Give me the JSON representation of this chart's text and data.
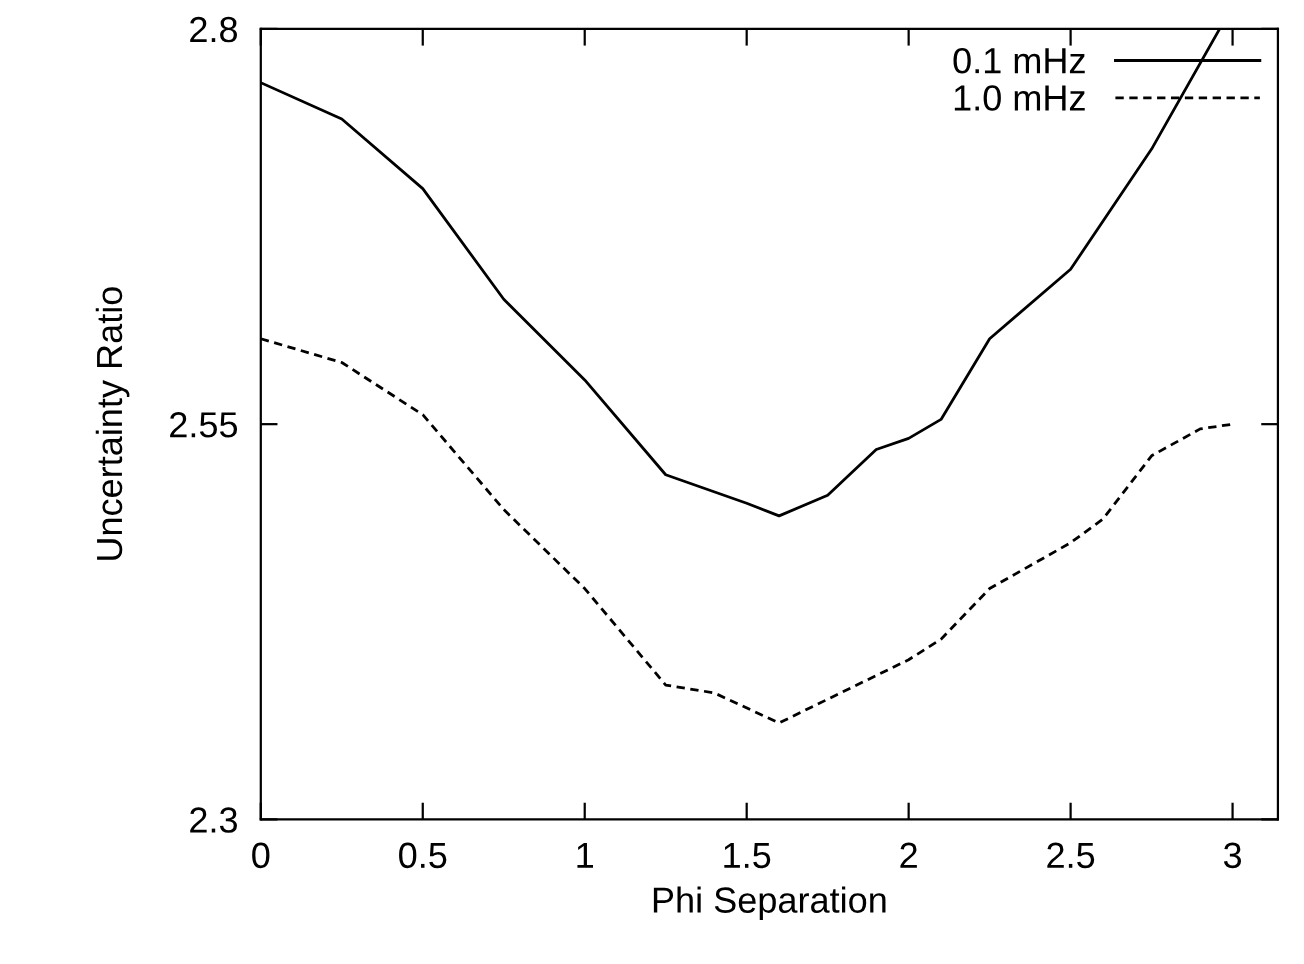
{
  "chart_data": {
    "type": "line",
    "xlabel": "Phi Separation",
    "ylabel": "Uncertainty Ratio",
    "xlim": [
      0,
      3.14
    ],
    "ylim": [
      2.3,
      2.8
    ],
    "xticks": [
      0,
      0.5,
      1,
      1.5,
      2,
      2.5,
      3
    ],
    "yticks": [
      2.3,
      2.55,
      2.8
    ],
    "legend": "top right",
    "grid": false,
    "marker": "none",
    "series": [
      {
        "name": "0.1 mHz",
        "color": "#000000",
        "line_style": "solid",
        "x": [
          0,
          0.25,
          0.5,
          0.75,
          1.0,
          1.25,
          1.5,
          1.6,
          1.75,
          1.9,
          2.0,
          2.1,
          2.25,
          2.5,
          2.75,
          2.96
        ],
        "values": [
          2.766,
          2.743,
          2.699,
          2.629,
          2.578,
          2.518,
          2.5,
          2.492,
          2.505,
          2.534,
          2.541,
          2.553,
          2.604,
          2.648,
          2.724,
          2.8
        ]
      },
      {
        "name": "1.0 mHz",
        "color": "#000000",
        "line_style": "dashed",
        "x": [
          0,
          0.25,
          0.5,
          0.75,
          1.0,
          1.25,
          1.4,
          1.6,
          1.75,
          2.0,
          2.1,
          2.25,
          2.5,
          2.6,
          2.75,
          2.9,
          3.0
        ],
        "values": [
          2.604,
          2.589,
          2.556,
          2.496,
          2.446,
          2.385,
          2.38,
          2.361,
          2.376,
          2.401,
          2.414,
          2.446,
          2.475,
          2.49,
          2.53,
          2.547,
          2.55
        ]
      }
    ]
  }
}
